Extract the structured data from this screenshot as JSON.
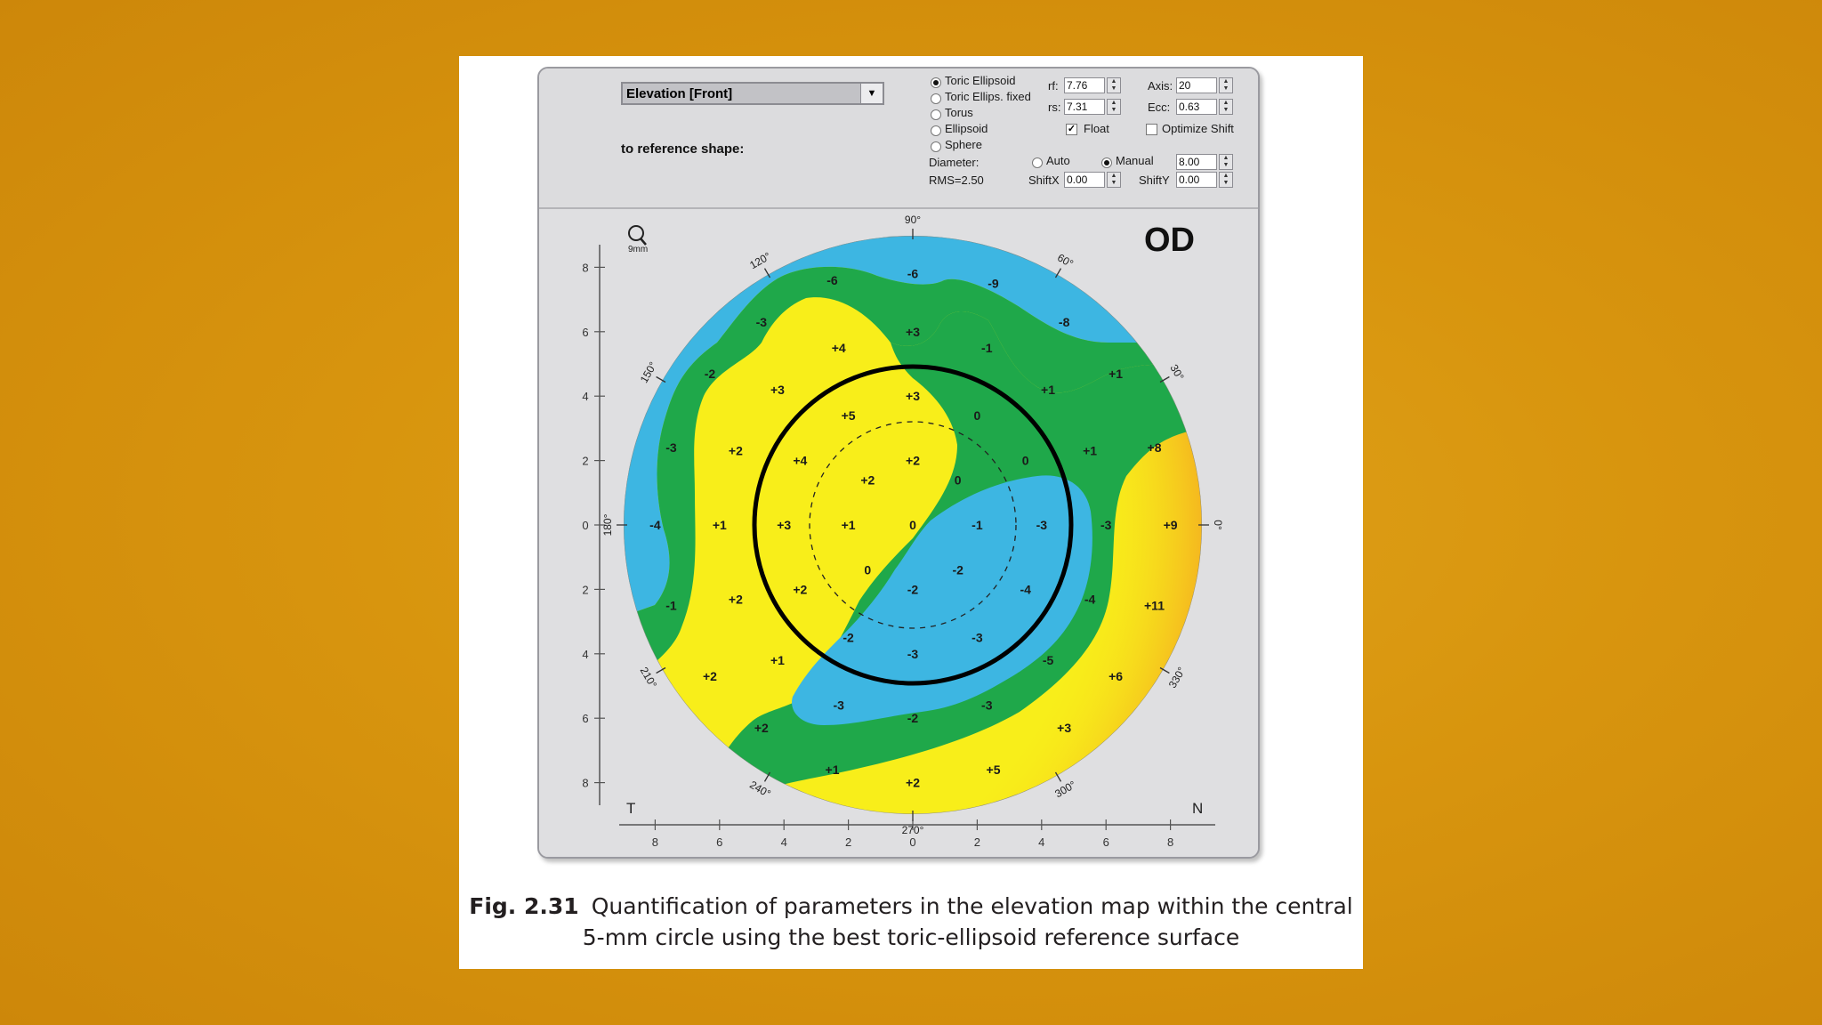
{
  "control_panel": {
    "view_select": {
      "value": "Elevation [Front]"
    },
    "reference_label": "to reference shape:",
    "shape_options": [
      {
        "label": "Toric Ellipsoid",
        "selected": true
      },
      {
        "label": "Toric Ellips. fixed",
        "selected": false
      },
      {
        "label": "Torus",
        "selected": false
      },
      {
        "label": "Ellipsoid",
        "selected": false
      },
      {
        "label": "Sphere",
        "selected": false
      }
    ],
    "rf": {
      "label": "rf:",
      "value": "7.76"
    },
    "rs": {
      "label": "rs:",
      "value": "7.31"
    },
    "axis": {
      "label": "Axis:",
      "value": "20"
    },
    "ecc": {
      "label": "Ecc:",
      "value": "0.63"
    },
    "float": {
      "label": "Float",
      "checked": true
    },
    "optimize_shift": {
      "label": "Optimize Shift",
      "checked": false
    },
    "diameter_label": "Diameter:",
    "diameter_auto": {
      "label": "Auto",
      "selected": false
    },
    "diameter_manual": {
      "label": "Manual",
      "selected": true
    },
    "diameter_value": "8.00",
    "rms": "RMS=2.50",
    "shift_x": {
      "label": "ShiftX",
      "value": "0.00"
    },
    "shift_y": {
      "label": "ShiftY",
      "value": "0.00"
    }
  },
  "map": {
    "eye": "OD",
    "zoom_label": "9mm",
    "temporal": "T",
    "nasal": "N",
    "angle_labels": [
      "90°",
      "60°",
      "30°",
      "0°",
      "330°",
      "300°",
      "270°",
      "240°",
      "210°",
      "180°",
      "150°",
      "120°"
    ],
    "x_ticks": [
      "8",
      "6",
      "4",
      "2",
      "0",
      "2",
      "4",
      "6",
      "8"
    ],
    "y_ticks": [
      "8",
      "6",
      "4",
      "2",
      "0",
      "2",
      "4",
      "6",
      "8"
    ],
    "colors": {
      "blue": "#3db6e2",
      "green": "#1fa84a",
      "yellow": "#f8ee1a",
      "orange": "#f5a523"
    },
    "values": [
      {
        "text": "-6",
        "x": -2.5,
        "y": 7.6
      },
      {
        "text": "-6",
        "x": 0,
        "y": 7.8
      },
      {
        "text": "-9",
        "x": 2.5,
        "y": 7.5
      },
      {
        "text": "-3",
        "x": -4.7,
        "y": 6.3
      },
      {
        "text": "-8",
        "x": 4.7,
        "y": 6.3
      },
      {
        "text": "+4",
        "x": -2.3,
        "y": 5.5
      },
      {
        "text": "+3",
        "x": 0,
        "y": 6.0
      },
      {
        "text": "-1",
        "x": 2.3,
        "y": 5.5
      },
      {
        "text": "-2",
        "x": -6.3,
        "y": 4.7
      },
      {
        "text": "+3",
        "x": -4.2,
        "y": 4.2
      },
      {
        "text": "+3",
        "x": 0,
        "y": 4.0
      },
      {
        "text": "+1",
        "x": 4.2,
        "y": 4.2
      },
      {
        "text": "+1",
        "x": 6.3,
        "y": 4.7
      },
      {
        "text": "+5",
        "x": -2.0,
        "y": 3.4
      },
      {
        "text": "0",
        "x": 2.0,
        "y": 3.4
      },
      {
        "text": "-3",
        "x": -7.5,
        "y": 2.4
      },
      {
        "text": "+2",
        "x": -5.5,
        "y": 2.3
      },
      {
        "text": "+4",
        "x": -3.5,
        "y": 2.0
      },
      {
        "text": "+2",
        "x": 0,
        "y": 2.0
      },
      {
        "text": "0",
        "x": 3.5,
        "y": 2.0
      },
      {
        "text": "+1",
        "x": 5.5,
        "y": 2.3
      },
      {
        "text": "+8",
        "x": 7.5,
        "y": 2.4
      },
      {
        "text": "+2",
        "x": -1.4,
        "y": 1.4
      },
      {
        "text": "0",
        "x": 1.4,
        "y": 1.4
      },
      {
        "text": "-4",
        "x": -8.0,
        "y": 0
      },
      {
        "text": "+1",
        "x": -6.0,
        "y": 0
      },
      {
        "text": "+3",
        "x": -4.0,
        "y": 0
      },
      {
        "text": "+1",
        "x": -2.0,
        "y": 0
      },
      {
        "text": "0",
        "x": 0,
        "y": 0
      },
      {
        "text": "-1",
        "x": 2.0,
        "y": 0
      },
      {
        "text": "-3",
        "x": 4.0,
        "y": 0
      },
      {
        "text": "-3",
        "x": 6.0,
        "y": 0
      },
      {
        "text": "+9",
        "x": 8.0,
        "y": 0
      },
      {
        "text": "0",
        "x": -1.4,
        "y": -1.4
      },
      {
        "text": "-2",
        "x": 1.4,
        "y": -1.4
      },
      {
        "text": "-1",
        "x": -7.5,
        "y": -2.5
      },
      {
        "text": "+2",
        "x": -5.5,
        "y": -2.3
      },
      {
        "text": "+2",
        "x": -3.5,
        "y": -2.0
      },
      {
        "text": "-2",
        "x": 0,
        "y": -2.0
      },
      {
        "text": "-4",
        "x": 3.5,
        "y": -2.0
      },
      {
        "text": "-4",
        "x": 5.5,
        "y": -2.3
      },
      {
        "text": "+11",
        "x": 7.5,
        "y": -2.5
      },
      {
        "text": "-2",
        "x": -2.0,
        "y": -3.5
      },
      {
        "text": "-3",
        "x": 2.0,
        "y": -3.5
      },
      {
        "text": "-3",
        "x": 0,
        "y": -4.0
      },
      {
        "text": "+2",
        "x": -6.3,
        "y": -4.7
      },
      {
        "text": "+1",
        "x": -4.2,
        "y": -4.2
      },
      {
        "text": "-5",
        "x": 4.2,
        "y": -4.2
      },
      {
        "text": "+6",
        "x": 6.3,
        "y": -4.7
      },
      {
        "text": "-3",
        "x": -2.3,
        "y": -5.6
      },
      {
        "text": "-2",
        "x": 0,
        "y": -6.0
      },
      {
        "text": "-3",
        "x": 2.3,
        "y": -5.6
      },
      {
        "text": "+2",
        "x": -4.7,
        "y": -6.3
      },
      {
        "text": "+3",
        "x": 4.7,
        "y": -6.3
      },
      {
        "text": "+1",
        "x": -2.5,
        "y": -7.6
      },
      {
        "text": "+2",
        "x": 0,
        "y": -8.0
      },
      {
        "text": "+5",
        "x": 2.5,
        "y": -7.6
      }
    ]
  },
  "caption": {
    "label": "Fig. 2.31",
    "text": "Quantification of parameters in the elevation map within the central 5-mm circle using the best toric-ellipsoid reference surface"
  }
}
